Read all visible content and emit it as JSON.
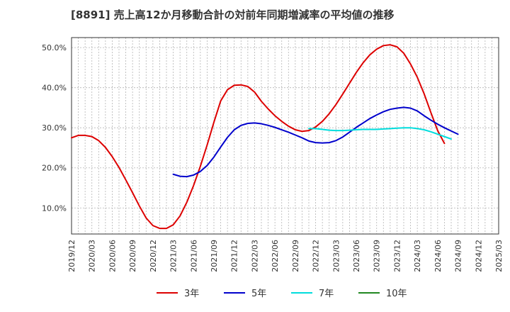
{
  "chart_data": {
    "type": "line",
    "title": "[8891]  売上高12か月移動合計の対前年同期増減率の平均値の推移",
    "xlabel": "",
    "ylabel": "",
    "x_ticks": [
      "2019/12",
      "2020/03",
      "2020/06",
      "2020/09",
      "2020/12",
      "2021/03",
      "2021/06",
      "2021/09",
      "2021/12",
      "2022/03",
      "2022/06",
      "2022/09",
      "2022/12",
      "2023/03",
      "2023/06",
      "2023/09",
      "2023/12",
      "2024/03",
      "2024/06",
      "2024/09",
      "2024/12",
      "2025/03"
    ],
    "y_ticks": [
      10,
      20,
      30,
      40,
      50
    ],
    "y_tick_labels": [
      "10.0%",
      "20.0%",
      "30.0%",
      "40.0%",
      "50.0%"
    ],
    "ylim": [
      3.5,
      52.5
    ],
    "grid": true,
    "legend_position": "bottom",
    "series": [
      {
        "name": "3年",
        "color": "#dd0000",
        "values": [
          [
            0,
            27.5
          ],
          [
            1,
            28.1
          ],
          [
            2,
            28.1
          ],
          [
            3,
            27.8
          ],
          [
            4,
            26.8
          ],
          [
            5,
            25.1
          ],
          [
            6,
            22.8
          ],
          [
            7,
            20.1
          ],
          [
            8,
            17.0
          ],
          [
            9,
            13.8
          ],
          [
            10,
            10.5
          ],
          [
            11,
            7.5
          ],
          [
            12,
            5.6
          ],
          [
            13,
            4.9
          ],
          [
            14,
            4.9
          ],
          [
            15,
            5.8
          ],
          [
            16,
            8.0
          ],
          [
            17,
            11.4
          ],
          [
            18,
            15.6
          ],
          [
            19,
            20.4
          ],
          [
            20,
            25.7
          ],
          [
            21,
            31.4
          ],
          [
            22,
            36.7
          ],
          [
            23,
            39.5
          ],
          [
            24,
            40.6
          ],
          [
            25,
            40.7
          ],
          [
            26,
            40.3
          ],
          [
            27,
            38.9
          ],
          [
            28,
            36.6
          ],
          [
            29,
            34.7
          ],
          [
            30,
            33.0
          ],
          [
            31,
            31.6
          ],
          [
            32,
            30.4
          ],
          [
            33,
            29.5
          ],
          [
            34,
            29.1
          ],
          [
            35,
            29.3
          ],
          [
            36,
            30.2
          ],
          [
            37,
            31.6
          ],
          [
            38,
            33.5
          ],
          [
            39,
            35.8
          ],
          [
            40,
            38.4
          ],
          [
            41,
            41.1
          ],
          [
            42,
            43.8
          ],
          [
            43,
            46.2
          ],
          [
            44,
            48.2
          ],
          [
            45,
            49.6
          ],
          [
            46,
            50.5
          ],
          [
            47,
            50.7
          ],
          [
            48,
            50.2
          ],
          [
            49,
            48.6
          ],
          [
            50,
            45.9
          ],
          [
            51,
            42.6
          ],
          [
            52,
            38.5
          ],
          [
            53,
            33.8
          ],
          [
            54,
            29.3
          ],
          [
            55,
            26.1
          ]
        ]
      },
      {
        "name": "5年",
        "color": "#0000cc",
        "values": [
          [
            15,
            18.4
          ],
          [
            16,
            17.9
          ],
          [
            17,
            17.8
          ],
          [
            18,
            18.2
          ],
          [
            19,
            19.1
          ],
          [
            20,
            20.6
          ],
          [
            21,
            22.7
          ],
          [
            22,
            25.2
          ],
          [
            23,
            27.6
          ],
          [
            24,
            29.5
          ],
          [
            25,
            30.6
          ],
          [
            26,
            31.1
          ],
          [
            27,
            31.2
          ],
          [
            28,
            31.0
          ],
          [
            29,
            30.6
          ],
          [
            30,
            30.1
          ],
          [
            31,
            29.5
          ],
          [
            32,
            28.9
          ],
          [
            33,
            28.2
          ],
          [
            34,
            27.5
          ],
          [
            35,
            26.7
          ],
          [
            36,
            26.3
          ],
          [
            37,
            26.2
          ],
          [
            38,
            26.3
          ],
          [
            39,
            26.8
          ],
          [
            40,
            27.7
          ],
          [
            41,
            28.9
          ],
          [
            42,
            30.1
          ],
          [
            43,
            31.2
          ],
          [
            44,
            32.3
          ],
          [
            45,
            33.2
          ],
          [
            46,
            34.0
          ],
          [
            47,
            34.6
          ],
          [
            48,
            34.9
          ],
          [
            49,
            35.1
          ],
          [
            50,
            34.9
          ],
          [
            51,
            34.2
          ],
          [
            52,
            33.0
          ],
          [
            53,
            31.9
          ],
          [
            54,
            30.9
          ],
          [
            55,
            30.0
          ],
          [
            56,
            29.2
          ],
          [
            57,
            28.4
          ]
        ]
      },
      {
        "name": "7年",
        "color": "#00dddd",
        "values": [
          [
            35,
            29.8
          ],
          [
            36,
            29.8
          ],
          [
            37,
            29.6
          ],
          [
            38,
            29.4
          ],
          [
            39,
            29.3
          ],
          [
            40,
            29.3
          ],
          [
            41,
            29.4
          ],
          [
            42,
            29.5
          ],
          [
            43,
            29.6
          ],
          [
            44,
            29.6
          ],
          [
            45,
            29.6
          ],
          [
            46,
            29.7
          ],
          [
            47,
            29.8
          ],
          [
            48,
            29.9
          ],
          [
            49,
            30.0
          ],
          [
            50,
            30.0
          ],
          [
            51,
            29.8
          ],
          [
            52,
            29.5
          ],
          [
            53,
            29.0
          ],
          [
            54,
            28.4
          ],
          [
            55,
            27.8
          ],
          [
            56,
            27.2
          ]
        ]
      },
      {
        "name": "10年",
        "color": "#228822",
        "values": []
      }
    ]
  }
}
